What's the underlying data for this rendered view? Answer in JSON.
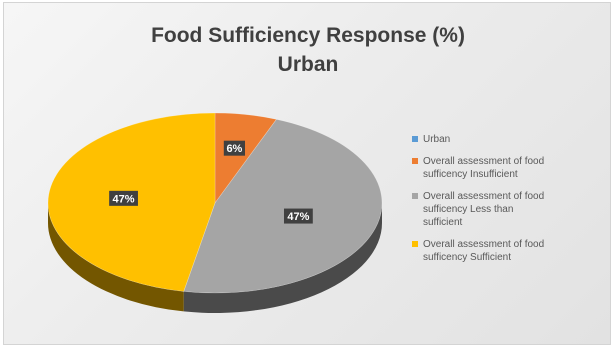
{
  "chart_data": {
    "type": "pie",
    "title": [
      "Food Sufficiency Response (%)",
      "Urban"
    ],
    "categories": [
      "Urban",
      "Overall assessment of food sufficency Insufficient",
      "Overall assessment of food sufficency Less than sufficient",
      "Overall assessment of food sufficency Sufficient"
    ],
    "values": [
      0,
      6,
      47,
      47
    ],
    "data_labels": [
      "",
      "6%",
      "47%",
      "47%"
    ],
    "colors": [
      "#5b9bd5",
      "#ed7d31",
      "#a5a5a5",
      "#ffc000"
    ],
    "legend_position": "right",
    "style": "3d-pie"
  },
  "legend": {
    "items": [
      {
        "lines": [
          "Urban"
        ],
        "color": "#5b9bd5"
      },
      {
        "lines": [
          "Overall assessment of food",
          "sufficency Insufficient"
        ],
        "color": "#ed7d31"
      },
      {
        "lines": [
          "Overall assessment of food",
          "sufficency Less than",
          "sufficient"
        ],
        "color": "#a5a5a5"
      },
      {
        "lines": [
          "Overall assessment of food",
          "sufficency Sufficient"
        ],
        "color": "#ffc000"
      }
    ]
  }
}
